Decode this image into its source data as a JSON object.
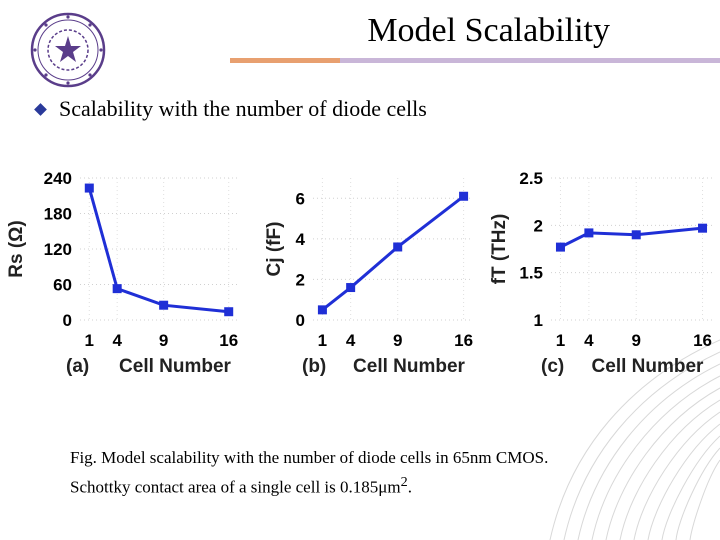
{
  "slide": {
    "title": "Model Scalability",
    "bullet": "Scalability with the number of diode cells",
    "caption_line1": "Fig.  Model scalability with the number of diode cells in 65nm CMOS.",
    "caption_line2": "Schottky contact area of a single cell is 0.185μm",
    "caption_sup": "2",
    "caption_end": "."
  },
  "colors": {
    "series": "#1f2fd6",
    "rule_left": "#e8a070",
    "rule_right": "#c9b6d8",
    "logo": "#5a3d8a",
    "text": "#000000"
  },
  "chart_data": [
    {
      "type": "line",
      "panel": "(a)",
      "x": [
        1,
        4,
        9,
        16
      ],
      "values": [
        223,
        53,
        25,
        14
      ],
      "xticks": [
        "1",
        "4",
        "9",
        "16"
      ],
      "yticks": [
        "0",
        "60",
        "120",
        "180",
        "240"
      ],
      "ytick_values": [
        0,
        60,
        120,
        180,
        240
      ],
      "ylim": [
        0,
        240
      ],
      "xlim": [
        0,
        17
      ],
      "xlabel": "Cell Number",
      "ylabel": "Rs (Ω)"
    },
    {
      "type": "line",
      "panel": "(b)",
      "x": [
        1,
        4,
        9,
        16
      ],
      "values": [
        0.5,
        1.6,
        3.6,
        6.1
      ],
      "xticks": [
        "1",
        "4",
        "9",
        "16"
      ],
      "yticks": [
        "0",
        "2",
        "4",
        "6"
      ],
      "ytick_values": [
        0,
        2,
        4,
        6
      ],
      "ylim": [
        0,
        7
      ],
      "xlim": [
        0,
        17
      ],
      "xlabel": "Cell Number",
      "ylabel": "Cj (fF)"
    },
    {
      "type": "line",
      "panel": "(c)",
      "x": [
        1,
        4,
        9,
        16
      ],
      "values": [
        1.77,
        1.92,
        1.9,
        1.97
      ],
      "xticks": [
        "1",
        "4",
        "9",
        "16"
      ],
      "yticks": [
        "1",
        "1.5",
        "2",
        "2.5"
      ],
      "ytick_values": [
        1,
        1.5,
        2,
        2.5
      ],
      "ylim": [
        1,
        2.5
      ],
      "xlim": [
        0,
        17
      ],
      "xlabel": "Cell Number",
      "ylabel": "fT (THz)"
    }
  ]
}
